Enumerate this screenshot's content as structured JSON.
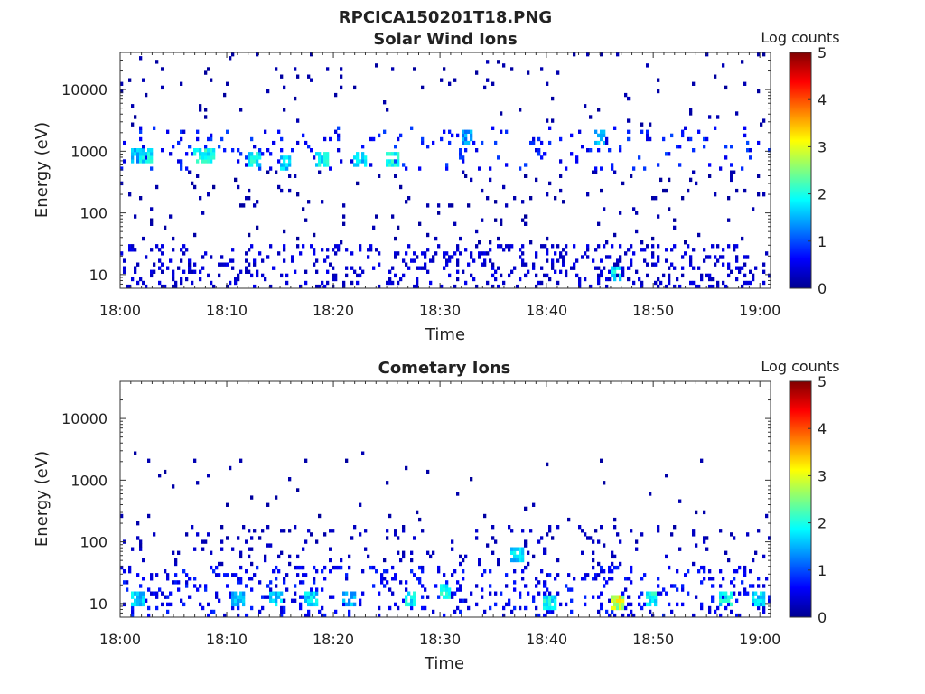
{
  "figure_title": "RPCICA150201T18.PNG",
  "chart_data": [
    {
      "type": "heatmap",
      "title": "Solar Wind Ions",
      "xlabel": "Time",
      "ylabel": "Energy (eV)",
      "x_range": [
        "18:00",
        "19:01"
      ],
      "x_ticks": [
        "18:00",
        "18:10",
        "18:20",
        "18:30",
        "18:40",
        "18:50",
        "19:00"
      ],
      "y_scale": "log",
      "y_range": [
        6,
        40000
      ],
      "y_ticks": [
        "10",
        "100",
        "1000",
        "10000"
      ],
      "colorbar": {
        "label": "Log counts",
        "range": [
          0,
          5
        ],
        "ticks": [
          "0",
          "1",
          "2",
          "3",
          "4",
          "5"
        ],
        "colormap": "jet"
      },
      "seed": 20150201,
      "bands": [
        {
          "emin": 6,
          "emax": 30,
          "density": 0.16,
          "level": 0.4
        },
        {
          "emin": 30,
          "emax": 500,
          "density": 0.03,
          "level": 0.2
        },
        {
          "emin": 500,
          "emax": 2500,
          "density": 0.07,
          "level": 0.7
        },
        {
          "emin": 2500,
          "emax": 40000,
          "density": 0.02,
          "level": 0.2
        }
      ],
      "hotspots": [
        {
          "t": 1.5,
          "e": 850,
          "level": 1.6
        },
        {
          "t": 2.5,
          "e": 800,
          "level": 2.0
        },
        {
          "t": 7.5,
          "e": 900,
          "level": 2.2
        },
        {
          "t": 8.2,
          "e": 850,
          "level": 2.0
        },
        {
          "t": 12.6,
          "e": 700,
          "level": 2.0
        },
        {
          "t": 15.5,
          "e": 650,
          "level": 1.8
        },
        {
          "t": 19.0,
          "e": 750,
          "level": 2.0
        },
        {
          "t": 22.5,
          "e": 700,
          "level": 1.8
        },
        {
          "t": 25.5,
          "e": 700,
          "level": 2.0
        },
        {
          "t": 32.5,
          "e": 1800,
          "level": 1.5
        },
        {
          "t": 45.0,
          "e": 1700,
          "level": 1.7
        },
        {
          "t": 46.5,
          "e": 10,
          "level": 2.0
        }
      ]
    },
    {
      "type": "heatmap",
      "title": "Cometary Ions",
      "xlabel": "Time",
      "ylabel": "Energy (eV)",
      "x_range": [
        "18:00",
        "19:01"
      ],
      "x_ticks": [
        "18:00",
        "18:10",
        "18:20",
        "18:30",
        "18:40",
        "18:50",
        "19:00"
      ],
      "y_scale": "log",
      "y_range": [
        6,
        40000
      ],
      "y_ticks": [
        "10",
        "100",
        "1000",
        "10000"
      ],
      "colorbar": {
        "label": "Log counts",
        "range": [
          0,
          5
        ],
        "ticks": [
          "0",
          "1",
          "2",
          "3",
          "4",
          "5"
        ],
        "colormap": "jet"
      },
      "seed": 7301,
      "bands": [
        {
          "emin": 6,
          "emax": 40,
          "density": 0.14,
          "level": 0.6
        },
        {
          "emin": 40,
          "emax": 200,
          "density": 0.07,
          "level": 0.3
        },
        {
          "emin": 200,
          "emax": 3000,
          "density": 0.012,
          "level": 0.2
        }
      ],
      "hotspots": [
        {
          "t": 1.6,
          "e": 12,
          "level": 1.8
        },
        {
          "t": 11.0,
          "e": 12,
          "level": 1.6
        },
        {
          "t": 14.6,
          "e": 12,
          "level": 1.7
        },
        {
          "t": 18.0,
          "e": 12,
          "level": 1.8
        },
        {
          "t": 21.5,
          "e": 12,
          "level": 1.6
        },
        {
          "t": 27.4,
          "e": 12,
          "level": 2.0
        },
        {
          "t": 30.5,
          "e": 15,
          "level": 2.2
        },
        {
          "t": 37.2,
          "e": 60,
          "level": 1.8
        },
        {
          "t": 40.2,
          "e": 11,
          "level": 2.0
        },
        {
          "t": 46.7,
          "e": 10,
          "level": 3.1
        },
        {
          "t": 49.8,
          "e": 12,
          "level": 2.1
        },
        {
          "t": 56.8,
          "e": 12,
          "level": 2.0
        },
        {
          "t": 59.8,
          "e": 12,
          "level": 1.8
        }
      ]
    }
  ]
}
